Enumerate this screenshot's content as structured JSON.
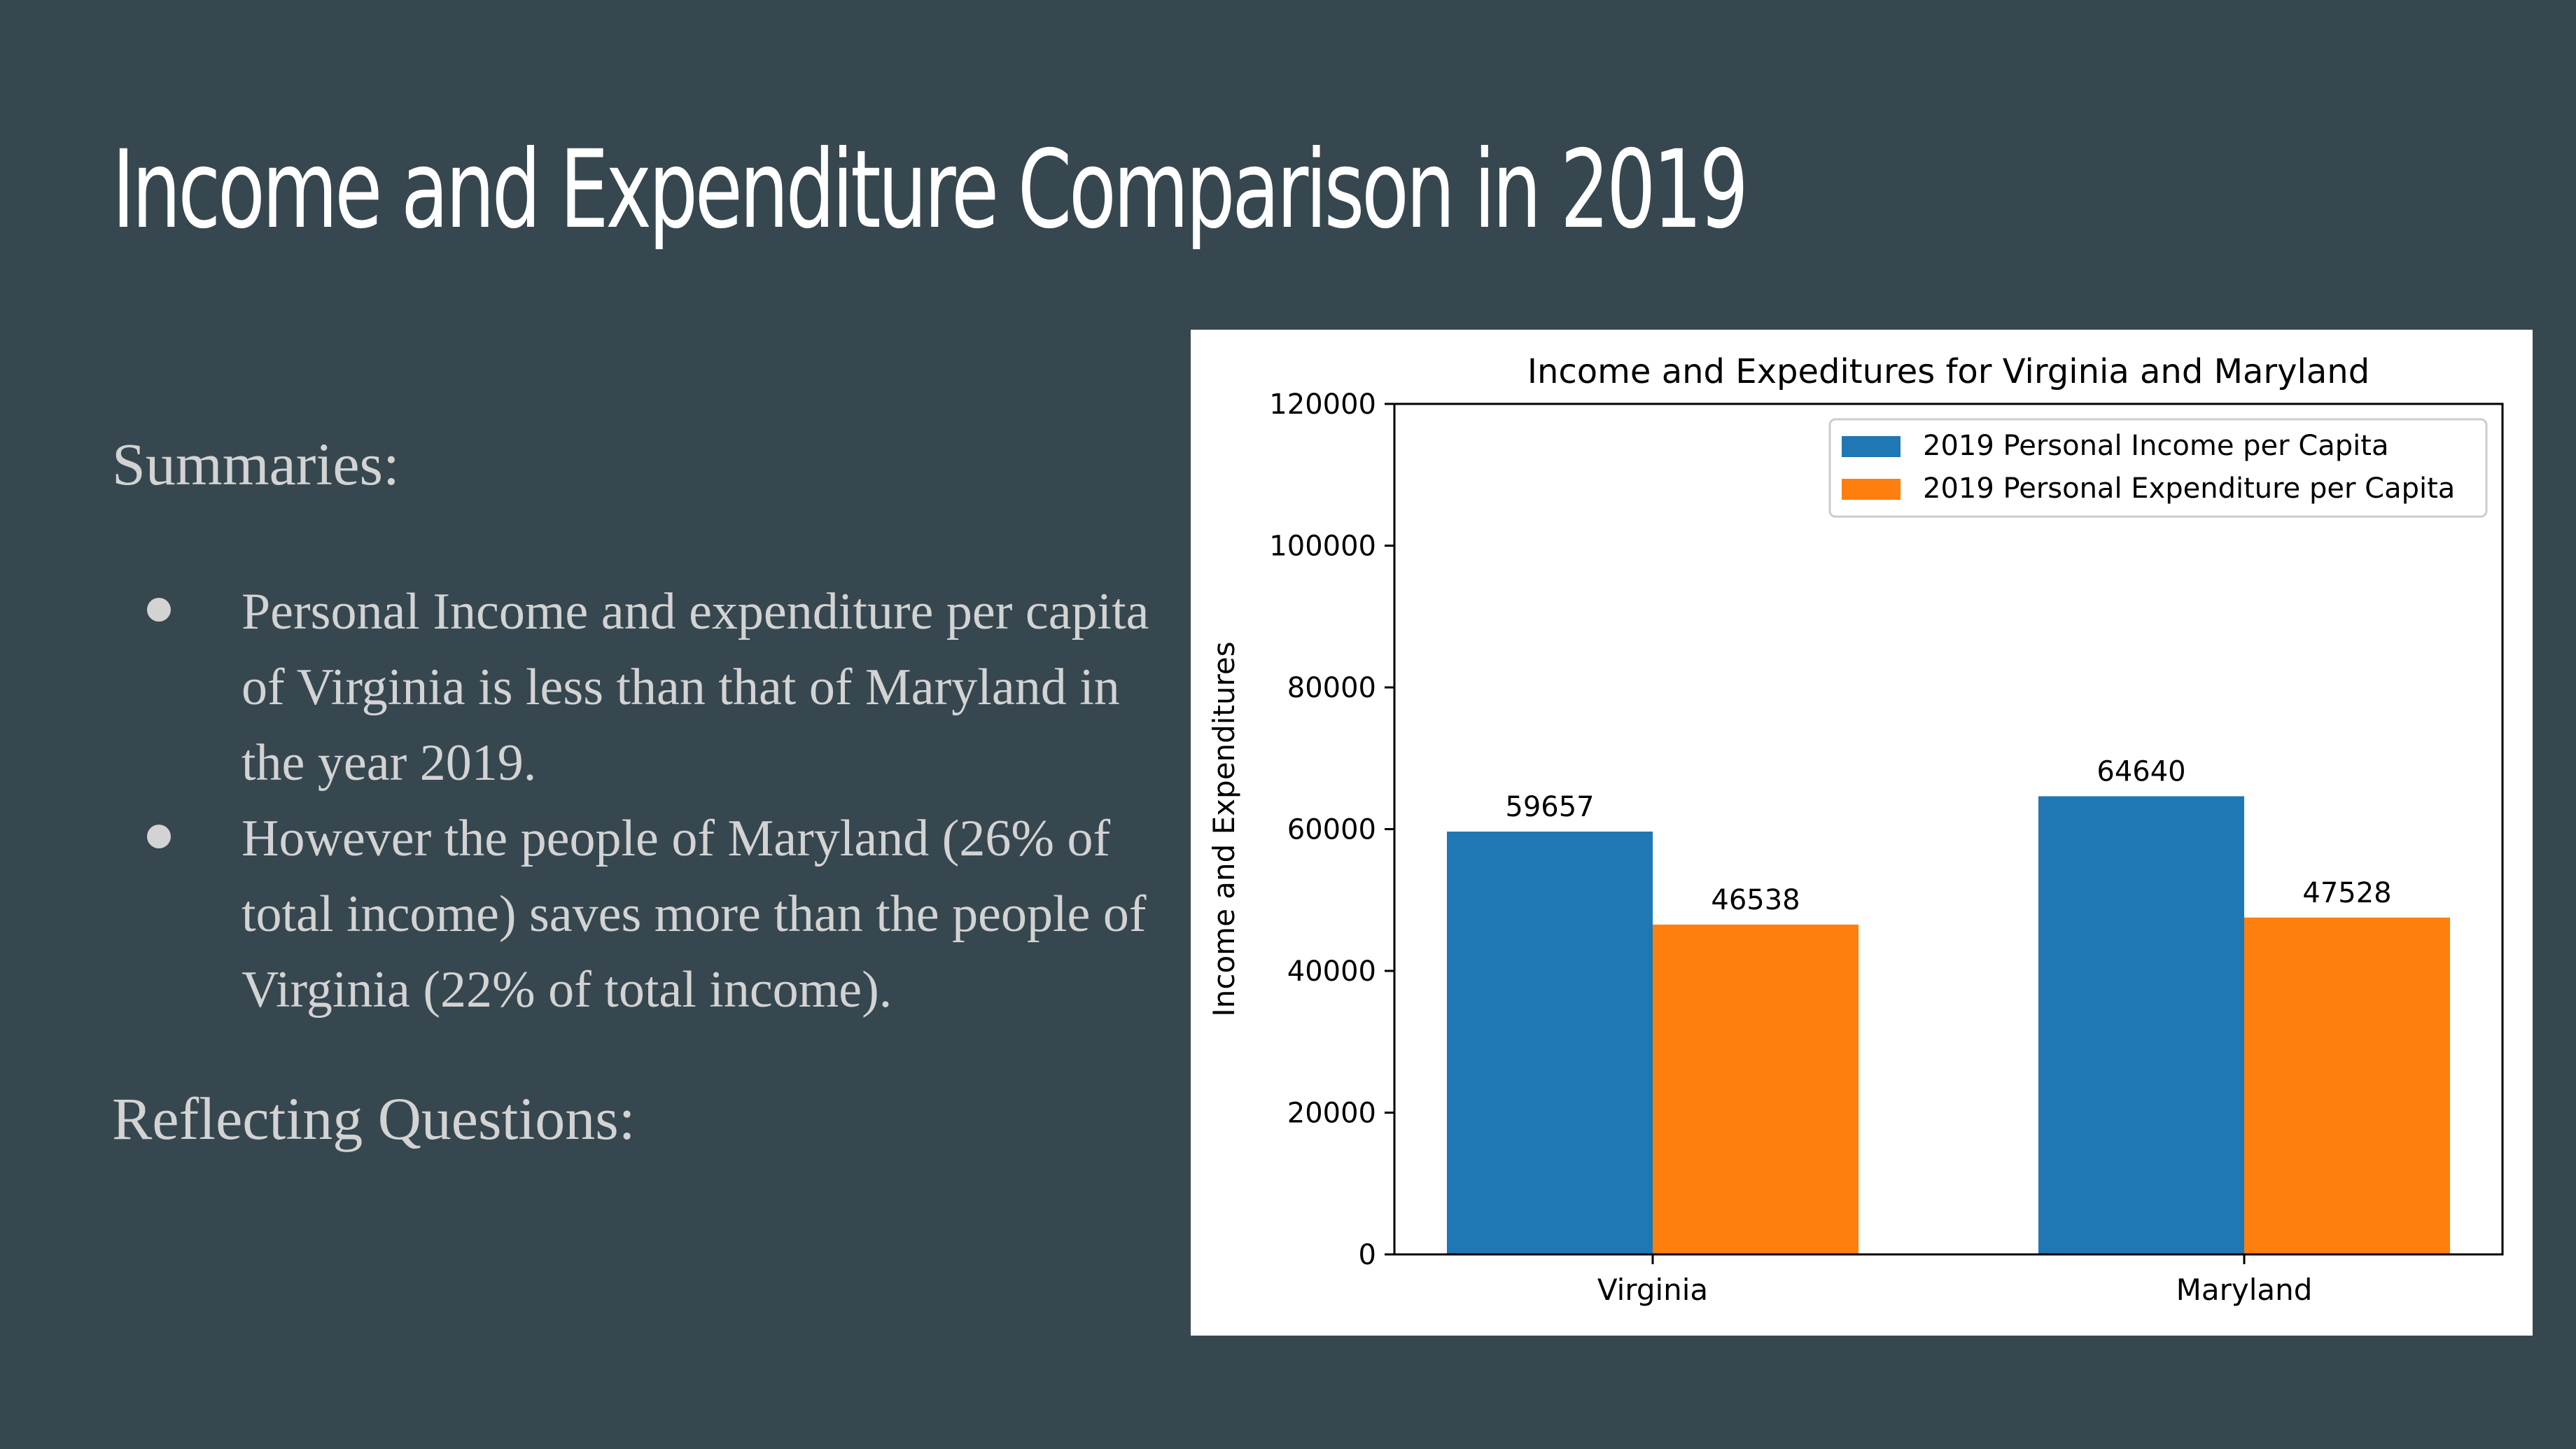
{
  "slide": {
    "title": "Income and Expenditure Comparison in 2019",
    "summaries_heading": "Summaries:",
    "bullets": [
      "Personal Income and expenditure per capita of Virginia is less than that of Maryland in the year 2019.",
      "However the people of Maryland (26% of total income) saves more than the people of Virginia (22% of total income)."
    ],
    "reflecting_heading": "Reflecting Questions:"
  },
  "colors": {
    "background": "#37474f",
    "title_text": "#ffffff",
    "body_text": "#d3d3d3",
    "income_series": "#1f77b4",
    "expenditure_series": "#ff7f0e"
  },
  "chart_data": {
    "type": "bar",
    "title": "Income and Expeditures for Virginia and Maryland",
    "xlabel": "",
    "ylabel": "Income and Expenditures",
    "categories": [
      "Virginia",
      "Maryland"
    ],
    "series": [
      {
        "name": "2019 Personal Income per Capita",
        "values": [
          59657,
          64640
        ],
        "color": "#1f77b4"
      },
      {
        "name": "2019 Personal Expenditure per Capita",
        "values": [
          46538,
          47528
        ],
        "color": "#ff7f0e"
      }
    ],
    "data_labels": [
      "59657",
      "64640",
      "46538",
      "47528"
    ],
    "ylim": [
      0,
      120000
    ],
    "yticks": [
      0,
      20000,
      40000,
      60000,
      80000,
      100000,
      120000
    ],
    "ytick_labels": [
      "0",
      "20000",
      "40000",
      "60000",
      "80000",
      "100000",
      "120000"
    ],
    "grid": false,
    "legend_position": "top-right"
  }
}
